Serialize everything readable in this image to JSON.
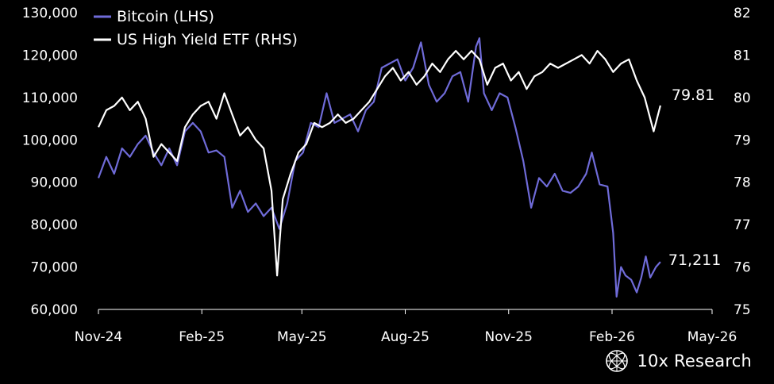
{
  "chart_data": {
    "type": "line",
    "legend_placement": "top-left",
    "grid": false,
    "x_axis": {
      "ticks": [
        "Nov-24",
        "Feb-25",
        "May-25",
        "Aug-25",
        "Nov-25",
        "Feb-26",
        "May-26"
      ]
    },
    "y_left": {
      "range": [
        60000,
        130000
      ],
      "ticks": [
        "60,000",
        "70,000",
        "80,000",
        "90,000",
        "100,000",
        "110,000",
        "120,000",
        "130,000"
      ]
    },
    "y_right": {
      "range": [
        75,
        82
      ],
      "ticks": [
        "75",
        "76",
        "77",
        "78",
        "79",
        "80",
        "81",
        "82"
      ]
    },
    "series": [
      {
        "name": "Bitcoin (LHS)",
        "axis": "left",
        "color": "#6f6bd8",
        "end_label": "71,211",
        "points": [
          [
            "2024-11-01",
            91000
          ],
          [
            "2024-11-08",
            96000
          ],
          [
            "2024-11-15",
            92000
          ],
          [
            "2024-11-22",
            98000
          ],
          [
            "2024-11-29",
            96000
          ],
          [
            "2024-12-06",
            99000
          ],
          [
            "2024-12-13",
            101000
          ],
          [
            "2024-12-20",
            97000
          ],
          [
            "2024-12-27",
            94000
          ],
          [
            "2025-01-03",
            98000
          ],
          [
            "2025-01-10",
            94000
          ],
          [
            "2025-01-17",
            102000
          ],
          [
            "2025-01-24",
            104000
          ],
          [
            "2025-01-31",
            102000
          ],
          [
            "2025-02-07",
            97000
          ],
          [
            "2025-02-14",
            97500
          ],
          [
            "2025-02-21",
            96000
          ],
          [
            "2025-02-28",
            84000
          ],
          [
            "2025-03-07",
            88000
          ],
          [
            "2025-03-14",
            83000
          ],
          [
            "2025-03-21",
            85000
          ],
          [
            "2025-03-28",
            82000
          ],
          [
            "2025-04-04",
            84000
          ],
          [
            "2025-04-11",
            79000
          ],
          [
            "2025-04-18",
            85000
          ],
          [
            "2025-04-25",
            95000
          ],
          [
            "2025-05-02",
            97000
          ],
          [
            "2025-05-09",
            104000
          ],
          [
            "2025-05-16",
            103000
          ],
          [
            "2025-05-23",
            111000
          ],
          [
            "2025-05-30",
            104000
          ],
          [
            "2025-06-06",
            105000
          ],
          [
            "2025-06-13",
            106000
          ],
          [
            "2025-06-20",
            102000
          ],
          [
            "2025-06-27",
            107000
          ],
          [
            "2025-07-04",
            109000
          ],
          [
            "2025-07-11",
            117000
          ],
          [
            "2025-07-18",
            118000
          ],
          [
            "2025-07-25",
            119000
          ],
          [
            "2025-08-01",
            114000
          ],
          [
            "2025-08-08",
            117000
          ],
          [
            "2025-08-15",
            123000
          ],
          [
            "2025-08-22",
            113000
          ],
          [
            "2025-08-29",
            109000
          ],
          [
            "2025-09-05",
            111000
          ],
          [
            "2025-09-12",
            115000
          ],
          [
            "2025-09-19",
            116000
          ],
          [
            "2025-09-26",
            109000
          ],
          [
            "2025-10-03",
            122000
          ],
          [
            "2025-10-06",
            124000
          ],
          [
            "2025-10-10",
            111000
          ],
          [
            "2025-10-17",
            107000
          ],
          [
            "2025-10-24",
            111000
          ],
          [
            "2025-10-31",
            110000
          ],
          [
            "2025-11-07",
            103000
          ],
          [
            "2025-11-14",
            95000
          ],
          [
            "2025-11-21",
            84000
          ],
          [
            "2025-11-28",
            91000
          ],
          [
            "2025-12-05",
            89000
          ],
          [
            "2025-12-12",
            92000
          ],
          [
            "2025-12-19",
            88000
          ],
          [
            "2025-12-26",
            87500
          ],
          [
            "2026-01-02",
            89000
          ],
          [
            "2026-01-09",
            92000
          ],
          [
            "2026-01-14",
            97000
          ],
          [
            "2026-01-21",
            89500
          ],
          [
            "2026-01-28",
            89000
          ],
          [
            "2026-02-02",
            78000
          ],
          [
            "2026-02-05",
            63000
          ],
          [
            "2026-02-09",
            70000
          ],
          [
            "2026-02-13",
            68000
          ],
          [
            "2026-02-18",
            67000
          ],
          [
            "2026-02-23",
            64000
          ],
          [
            "2026-02-27",
            67500
          ],
          [
            "2026-03-03",
            72500
          ],
          [
            "2026-03-07",
            67500
          ],
          [
            "2026-03-12",
            70000
          ],
          [
            "2026-03-16",
            71211
          ]
        ]
      },
      {
        "name": "US High Yield ETF (RHS)",
        "axis": "right",
        "color": "#ffffff",
        "end_label": "79.81",
        "points": [
          [
            "2024-11-01",
            79.3
          ],
          [
            "2024-11-08",
            79.7
          ],
          [
            "2024-11-15",
            79.8
          ],
          [
            "2024-11-22",
            80.0
          ],
          [
            "2024-11-29",
            79.7
          ],
          [
            "2024-12-06",
            79.9
          ],
          [
            "2024-12-13",
            79.5
          ],
          [
            "2024-12-20",
            78.6
          ],
          [
            "2024-12-27",
            78.9
          ],
          [
            "2025-01-03",
            78.7
          ],
          [
            "2025-01-10",
            78.5
          ],
          [
            "2025-01-17",
            79.3
          ],
          [
            "2025-01-24",
            79.6
          ],
          [
            "2025-01-31",
            79.8
          ],
          [
            "2025-02-07",
            79.9
          ],
          [
            "2025-02-14",
            79.5
          ],
          [
            "2025-02-21",
            80.1
          ],
          [
            "2025-02-28",
            79.6
          ],
          [
            "2025-03-07",
            79.1
          ],
          [
            "2025-03-14",
            79.3
          ],
          [
            "2025-03-21",
            79.0
          ],
          [
            "2025-03-28",
            78.8
          ],
          [
            "2025-04-04",
            77.8
          ],
          [
            "2025-04-09",
            75.8
          ],
          [
            "2025-04-14",
            77.6
          ],
          [
            "2025-04-21",
            78.2
          ],
          [
            "2025-04-28",
            78.7
          ],
          [
            "2025-05-05",
            78.9
          ],
          [
            "2025-05-12",
            79.4
          ],
          [
            "2025-05-19",
            79.3
          ],
          [
            "2025-05-26",
            79.4
          ],
          [
            "2025-06-02",
            79.6
          ],
          [
            "2025-06-09",
            79.4
          ],
          [
            "2025-06-16",
            79.5
          ],
          [
            "2025-06-23",
            79.7
          ],
          [
            "2025-06-30",
            79.9
          ],
          [
            "2025-07-07",
            80.2
          ],
          [
            "2025-07-14",
            80.5
          ],
          [
            "2025-07-21",
            80.7
          ],
          [
            "2025-07-28",
            80.4
          ],
          [
            "2025-08-04",
            80.6
          ],
          [
            "2025-08-11",
            80.3
          ],
          [
            "2025-08-18",
            80.5
          ],
          [
            "2025-08-25",
            80.8
          ],
          [
            "2025-09-01",
            80.6
          ],
          [
            "2025-09-08",
            80.9
          ],
          [
            "2025-09-15",
            81.1
          ],
          [
            "2025-09-22",
            80.9
          ],
          [
            "2025-09-29",
            81.1
          ],
          [
            "2025-10-06",
            80.9
          ],
          [
            "2025-10-13",
            80.3
          ],
          [
            "2025-10-20",
            80.7
          ],
          [
            "2025-10-27",
            80.8
          ],
          [
            "2025-11-03",
            80.4
          ],
          [
            "2025-11-10",
            80.6
          ],
          [
            "2025-11-17",
            80.2
          ],
          [
            "2025-11-24",
            80.5
          ],
          [
            "2025-12-01",
            80.6
          ],
          [
            "2025-12-08",
            80.8
          ],
          [
            "2025-12-15",
            80.7
          ],
          [
            "2025-12-22",
            80.8
          ],
          [
            "2025-12-29",
            80.9
          ],
          [
            "2026-01-05",
            81.0
          ],
          [
            "2026-01-12",
            80.8
          ],
          [
            "2026-01-19",
            81.1
          ],
          [
            "2026-01-26",
            80.9
          ],
          [
            "2026-02-02",
            80.6
          ],
          [
            "2026-02-09",
            80.8
          ],
          [
            "2026-02-16",
            80.9
          ],
          [
            "2026-02-23",
            80.4
          ],
          [
            "2026-03-02",
            80.0
          ],
          [
            "2026-03-06",
            79.6
          ],
          [
            "2026-03-10",
            79.2
          ],
          [
            "2026-03-16",
            79.81
          ]
        ]
      }
    ]
  },
  "brand": {
    "name": "10x Research",
    "icon": "globe-logo-icon"
  }
}
